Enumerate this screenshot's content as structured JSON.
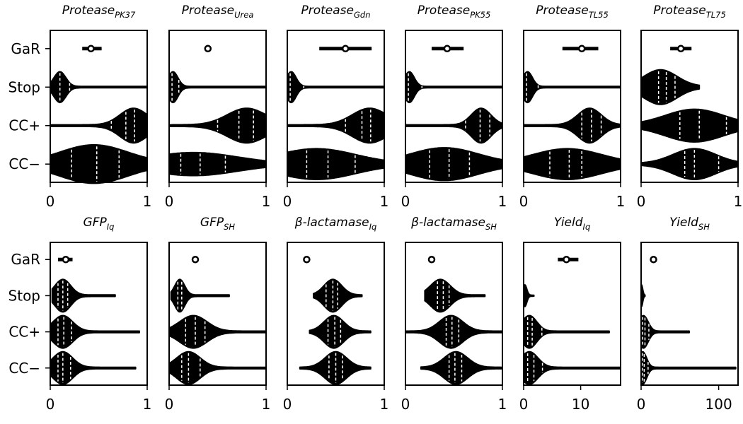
{
  "chart_data": {
    "type": "violin",
    "y_categories": [
      "GaR",
      "Stop",
      "CC+",
      "CC−"
    ],
    "panels": [
      {
        "title": "Protease",
        "subscript": "PK37",
        "xlim": [
          0,
          1
        ],
        "xticks": [
          "0",
          "1"
        ],
        "gar": {
          "mean": 0.42,
          "low": 0.33,
          "high": 0.53
        },
        "violins": {
          "Stop": {
            "min": 0.0,
            "max": 1.0,
            "mode": 0.1,
            "spread": 0.06,
            "height": 0.8,
            "quartiles": [
              0.1,
              0.2
            ]
          },
          "CC+": {
            "min": 0.0,
            "max": 1.0,
            "mode": 0.86,
            "spread": 0.14,
            "height": 0.9,
            "quartiles": [
              0.63,
              0.78,
              0.87
            ]
          },
          "CC−": {
            "min": 0.0,
            "max": 1.0,
            "mode": 0.45,
            "spread": 0.35,
            "height": 1.0,
            "quartiles": [
              0.22,
              0.48,
              0.71
            ]
          }
        }
      },
      {
        "title": "Protease",
        "subscript": "Urea",
        "xlim": [
          0,
          1
        ],
        "xticks": [
          "0",
          "1"
        ],
        "gar": {
          "mean": 0.4,
          "low": 0.4,
          "high": 0.4
        },
        "violins": {
          "Stop": {
            "min": 0.0,
            "max": 1.0,
            "mode": 0.04,
            "spread": 0.05,
            "height": 0.8,
            "quartiles": [
              0.03,
              0.1
            ]
          },
          "CC+": {
            "min": 0.0,
            "max": 1.0,
            "mode": 0.8,
            "spread": 0.2,
            "height": 0.9,
            "quartiles": [
              0.5,
              0.72,
              0.87
            ]
          },
          "CC−": {
            "min": 0.0,
            "max": 1.0,
            "mode": 0.25,
            "spread": 0.45,
            "height": 0.6,
            "quartiles": [
              0.12,
              0.32,
              0.58
            ]
          }
        }
      },
      {
        "title": "Protease",
        "subscript": "Gdn",
        "xlim": [
          0,
          1
        ],
        "xticks": [
          "0",
          "1"
        ],
        "gar": {
          "mean": 0.6,
          "low": 0.33,
          "high": 0.87
        },
        "violins": {
          "Stop": {
            "min": 0.0,
            "max": 1.0,
            "mode": 0.04,
            "spread": 0.05,
            "height": 0.8,
            "quartiles": [
              0.03,
              0.17
            ]
          },
          "CC+": {
            "min": 0.0,
            "max": 1.0,
            "mode": 0.85,
            "spread": 0.18,
            "height": 0.9,
            "quartiles": [
              0.6,
              0.77,
              0.86
            ]
          },
          "CC−": {
            "min": 0.0,
            "max": 1.0,
            "mode": 0.3,
            "spread": 0.4,
            "height": 0.8,
            "quartiles": [
              0.2,
              0.42,
              0.7
            ]
          }
        }
      },
      {
        "title": "Protease",
        "subscript": "PK55",
        "xlim": [
          0,
          1
        ],
        "xticks": [
          "0",
          "1"
        ],
        "gar": {
          "mean": 0.43,
          "low": 0.27,
          "high": 0.6
        },
        "violins": {
          "Stop": {
            "min": 0.0,
            "max": 1.0,
            "mode": 0.04,
            "spread": 0.05,
            "height": 0.8,
            "quartiles": [
              0.03,
              0.17
            ]
          },
          "CC+": {
            "min": 0.0,
            "max": 1.0,
            "mode": 0.78,
            "spread": 0.1,
            "height": 0.9,
            "quartiles": [
              0.62,
              0.77,
              0.87
            ]
          },
          "CC−": {
            "min": 0.0,
            "max": 1.0,
            "mode": 0.4,
            "spread": 0.35,
            "height": 0.85,
            "quartiles": [
              0.25,
              0.45,
              0.66
            ]
          }
        }
      },
      {
        "title": "Protease",
        "subscript": "TL55",
        "xlim": [
          0,
          1
        ],
        "xticks": [
          "0",
          "1"
        ],
        "gar": {
          "mean": 0.6,
          "low": 0.4,
          "high": 0.77
        },
        "violins": {
          "Stop": {
            "min": 0.0,
            "max": 1.0,
            "mode": 0.04,
            "spread": 0.05,
            "height": 0.8,
            "quartiles": [
              0.03,
              0.15
            ]
          },
          "CC+": {
            "min": 0.0,
            "max": 1.0,
            "mode": 0.68,
            "spread": 0.12,
            "height": 0.9,
            "quartiles": [
              0.6,
              0.7,
              0.8
            ]
          },
          "CC−": {
            "min": 0.0,
            "max": 1.0,
            "mode": 0.45,
            "spread": 0.35,
            "height": 0.8,
            "quartiles": [
              0.27,
              0.47,
              0.6
            ]
          }
        }
      },
      {
        "title": "Protease",
        "subscript": "TL75",
        "xlim": [
          0,
          1
        ],
        "xticks": [
          "0",
          "1"
        ],
        "gar": {
          "mean": 0.41,
          "low": 0.3,
          "high": 0.52
        },
        "violins": {
          "Stop": {
            "min": 0.0,
            "max": 0.6,
            "mode": 0.2,
            "spread": 0.17,
            "height": 0.9,
            "quartiles": [
              0.18,
              0.26,
              0.35
            ]
          },
          "CC+": {
            "min": 0.0,
            "max": 1.0,
            "mode": 0.55,
            "spread": 0.3,
            "height": 0.85,
            "quartiles": [
              0.4,
              0.6,
              0.88
            ]
          },
          "CC−": {
            "min": 0.0,
            "max": 1.0,
            "mode": 0.55,
            "spread": 0.22,
            "height": 0.8,
            "quartiles": [
              0.45,
              0.55,
              0.8
            ]
          }
        }
      },
      {
        "title": "GFP",
        "subscript": "Iq",
        "xlim": [
          0,
          1
        ],
        "xticks": [
          "0",
          "1"
        ],
        "gar": {
          "mean": 0.16,
          "low": 0.08,
          "high": 0.23
        },
        "violins": {
          "Stop": {
            "min": 0.02,
            "max": 0.67,
            "mode": 0.13,
            "spread": 0.08,
            "height": 0.9,
            "quartiles": [
              0.08,
              0.13,
              0.18
            ]
          },
          "CC+": {
            "min": 0.0,
            "max": 0.92,
            "mode": 0.13,
            "spread": 0.1,
            "height": 0.9,
            "quartiles": [
              0.08,
              0.14,
              0.22
            ]
          },
          "CC−": {
            "min": 0.0,
            "max": 0.88,
            "mode": 0.13,
            "spread": 0.1,
            "height": 0.9,
            "quartiles": [
              0.08,
              0.13,
              0.21
            ]
          }
        }
      },
      {
        "title": "GFP",
        "subscript": "SH",
        "xlim": [
          0,
          1
        ],
        "xticks": [
          "0",
          "1"
        ],
        "gar": {
          "mean": 0.27,
          "low": 0.27,
          "high": 0.27
        },
        "violins": {
          "Stop": {
            "min": 0.02,
            "max": 0.62,
            "mode": 0.11,
            "spread": 0.05,
            "height": 0.9,
            "quartiles": [
              0.09,
              0.13
            ]
          },
          "CC+": {
            "min": 0.0,
            "max": 1.0,
            "mode": 0.25,
            "spread": 0.14,
            "height": 0.9,
            "quartiles": [
              0.17,
              0.27,
              0.37
            ]
          },
          "CC−": {
            "min": 0.0,
            "max": 1.0,
            "mode": 0.2,
            "spread": 0.12,
            "height": 0.9,
            "quartiles": [
              0.13,
              0.2,
              0.32
            ]
          }
        }
      },
      {
        "title": "β-lactamase",
        "subscript": "Iq",
        "xlim": [
          0,
          1
        ],
        "xticks": [
          "0",
          "1"
        ],
        "gar": {
          "mean": 0.2,
          "low": 0.2,
          "high": 0.2
        },
        "violins": {
          "Stop": {
            "min": 0.27,
            "max": 0.77,
            "mode": 0.47,
            "spread": 0.09,
            "height": 0.9,
            "quartiles": [
              0.4,
              0.47,
              0.52
            ]
          },
          "CC+": {
            "min": 0.23,
            "max": 0.86,
            "mode": 0.48,
            "spread": 0.1,
            "height": 0.9,
            "quartiles": [
              0.42,
              0.49,
              0.55
            ]
          },
          "CC−": {
            "min": 0.13,
            "max": 0.86,
            "mode": 0.5,
            "spread": 0.11,
            "height": 0.9,
            "quartiles": [
              0.43,
              0.5,
              0.57
            ]
          }
        }
      },
      {
        "title": "β-lactamase",
        "subscript": "SH",
        "xlim": [
          0,
          1
        ],
        "xticks": [
          "0",
          "1"
        ],
        "gar": {
          "mean": 0.27,
          "low": 0.27,
          "high": 0.27
        },
        "violins": {
          "Stop": {
            "min": 0.2,
            "max": 0.82,
            "mode": 0.36,
            "spread": 0.1,
            "height": 0.9,
            "quartiles": [
              0.33,
              0.39,
              0.45
            ]
          },
          "CC+": {
            "min": 0.0,
            "max": 1.0,
            "mode": 0.47,
            "spread": 0.12,
            "height": 0.9,
            "quartiles": [
              0.42,
              0.48,
              0.55
            ]
          },
          "CC−": {
            "min": 0.16,
            "max": 1.0,
            "mode": 0.52,
            "spread": 0.12,
            "height": 0.9,
            "quartiles": [
              0.45,
              0.51,
              0.58
            ]
          }
        }
      },
      {
        "title": "Yield",
        "subscript": "Iq",
        "xlim": [
          0,
          17
        ],
        "xticks": [
          "0",
          "10"
        ],
        "gar": {
          "mean": 7.5,
          "low": 6.0,
          "high": 9.6
        },
        "violins": {
          "Stop": {
            "min": 0.0,
            "max": 1.8,
            "mode": 0.2,
            "spread": 0.35,
            "height": 0.6,
            "quartiles": []
          },
          "CC+": {
            "min": 0.0,
            "max": 15.0,
            "mode": 1.0,
            "spread": 1.3,
            "height": 0.9,
            "quartiles": [
              0.7,
              1.5,
              3.2
            ]
          },
          "CC−": {
            "min": 0.0,
            "max": 17.0,
            "mode": 1.0,
            "spread": 1.5,
            "height": 0.9,
            "quartiles": [
              0.7,
              1.8,
              3.3
            ]
          }
        }
      },
      {
        "title": "Yield",
        "subscript": "SH",
        "xlim": [
          0,
          125
        ],
        "xticks": [
          "0",
          "100"
        ],
        "gar": {
          "mean": 16.0,
          "low": 12.0,
          "high": 20.0
        },
        "violins": {
          "Stop": {
            "min": 0.0,
            "max": 5.0,
            "mode": 0.5,
            "spread": 1.5,
            "height": 0.6,
            "quartiles": []
          },
          "CC+": {
            "min": 0.0,
            "max": 62.0,
            "mode": 3.0,
            "spread": 6.0,
            "height": 0.9,
            "quartiles": [
              2.0,
              5.0,
              10.0
            ]
          },
          "CC−": {
            "min": 0.0,
            "max": 122.0,
            "mode": 2.0,
            "spread": 5.0,
            "height": 0.9,
            "quartiles": [
              1.5,
              4.0,
              9.0
            ]
          }
        }
      }
    ]
  }
}
